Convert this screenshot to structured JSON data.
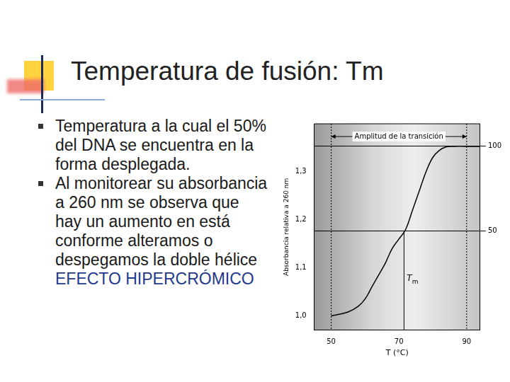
{
  "slide": {
    "title": "Temperatura de fusión: Tm",
    "bullets": [
      {
        "text": "Temperatura a la cual el 50% del DNA se encuentra en la forma desplegada."
      },
      {
        "text": "Al monitorear su absorbancia a 260 nm se observa que hay un aumento en está conforme alteramos o despegamos la doble hélice",
        "highlight": "EFECTO HIPERCRÓMICO"
      }
    ]
  },
  "chart_data": {
    "type": "line",
    "x_label": "T (°C)",
    "y_label": "Absorbancia relativa a 260 nm",
    "x": [
      50,
      55,
      58,
      60,
      62,
      64,
      66,
      68,
      70,
      72,
      74,
      76,
      78,
      80,
      82,
      84,
      86,
      90,
      94
    ],
    "values": [
      1.0,
      1.008,
      1.02,
      1.035,
      1.06,
      1.085,
      1.11,
      1.14,
      1.16,
      1.18,
      1.22,
      1.26,
      1.3,
      1.33,
      1.345,
      1.352,
      1.353,
      1.353,
      1.353
    ],
    "color": "#000000",
    "xlim": [
      45,
      94
    ],
    "xticks": [
      50,
      70,
      90
    ],
    "ylim": [
      0.97,
      1.4
    ],
    "yticks": [
      {
        "value": 1.0,
        "label": "1,0"
      },
      {
        "value": 1.1,
        "label": "1,1"
      },
      {
        "value": 1.2,
        "label": "1,2"
      },
      {
        "value": 1.3,
        "label": "1,3"
      }
    ],
    "y2lim": [
      -8.5,
      113.3
    ],
    "y2ticks": [
      50,
      100
    ],
    "grid": true,
    "annotations": [
      {
        "text": "Amplitud de la transición",
        "x_range": [
          50,
          90
        ]
      },
      {
        "text": "Tm",
        "x": 71.5
      }
    ]
  }
}
